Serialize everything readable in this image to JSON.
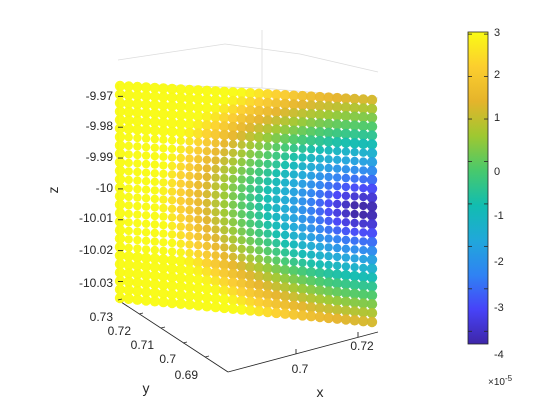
{
  "chart_data": {
    "type": "scatter",
    "title": "",
    "xlabel": "x",
    "ylabel": "y",
    "zlabel": "z",
    "x_ticks": [
      "0.7",
      "0.72"
    ],
    "y_ticks": [
      "0.73",
      "0.72",
      "0.71",
      "0.7",
      "0.69"
    ],
    "z_ticks": [
      "-9.97",
      "-9.98",
      "-9.99",
      "-10",
      "-10.01",
      "-10.02",
      "-10.03"
    ],
    "z_tick_values": [
      -9.97,
      -9.98,
      -9.99,
      -10,
      -10.01,
      -10.02,
      -10.03
    ],
    "zlim": [
      -10.036,
      -9.966
    ],
    "grid": true,
    "colormap": "parula",
    "colorbar": {
      "ticks": [
        "3",
        "2",
        "1",
        "0",
        "-1",
        "-2",
        "-3",
        "-4"
      ],
      "tick_values": [
        3,
        2,
        1,
        0,
        -1,
        -2,
        -3,
        -4
      ],
      "range": [
        -4.3,
        3.05
      ],
      "exponent_base": "×10",
      "exponent_power": "-5"
    },
    "colors": [
      "#3e26a8",
      "#4743f8",
      "#2f83f3",
      "#20a8da",
      "#12bdb0",
      "#48c96c",
      "#9ec831",
      "#e5b42b",
      "#fcce2e",
      "#f9fb15"
    ]
  }
}
